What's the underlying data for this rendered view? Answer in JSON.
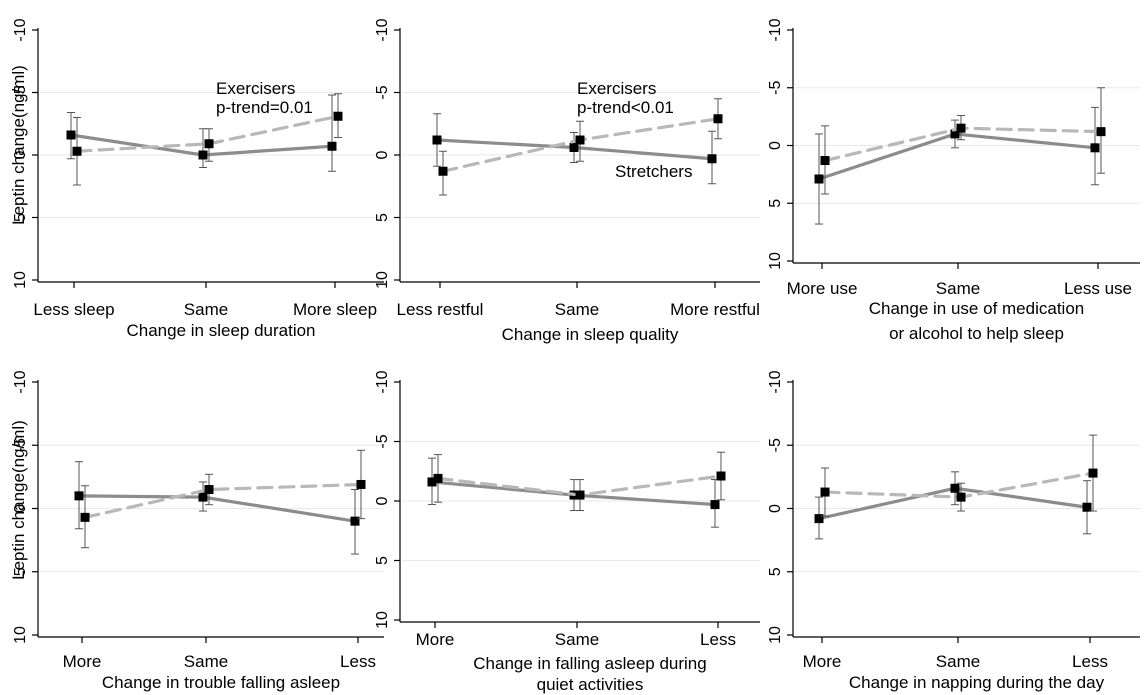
{
  "figure": {
    "ylabel": "Leptin change(ng/ml)",
    "colors": {
      "stretchers": "#8c8c8c",
      "exercisers": "#b8b8b8",
      "grid": "#e8e8e8",
      "marker": "#000000",
      "axis": "#000000"
    }
  },
  "chart_data": [
    {
      "type": "line",
      "categories": [
        "Less sleep",
        "Same",
        "More sleep"
      ],
      "xlabel": [
        "Change in sleep duration"
      ],
      "ylabel": "Leptin change(ng/ml)",
      "ylim": [
        10,
        -10
      ],
      "yticks": [
        -10,
        -5,
        0,
        5,
        10
      ],
      "ytick_labels": [
        "-10",
        "-5",
        "0",
        "5",
        "10"
      ],
      "grid": true,
      "series": [
        {
          "name": "Stretchers",
          "style": "solid",
          "values": [
            -1.6,
            0,
            -0.7
          ],
          "ci_low": [
            -3.4,
            -2.1,
            -4.8
          ],
          "ci_high": [
            0.3,
            1.0,
            1.3
          ]
        },
        {
          "name": "Exercisers",
          "style": "dashed",
          "values": [
            -0.3,
            -0.9,
            -3.1
          ],
          "ci_low": [
            -3.0,
            -2.1,
            -4.9
          ],
          "ci_high": [
            2.4,
            0.5,
            -1.4
          ]
        }
      ],
      "annotations": [
        "Exercisers",
        "p-trend=0.01"
      ]
    },
    {
      "type": "line",
      "categories": [
        "Less restful",
        "Same",
        "More restful"
      ],
      "xlabel": [
        "Change in sleep quality"
      ],
      "ylabel": "",
      "ylim": [
        10,
        -10
      ],
      "yticks": [
        -10,
        -5,
        0,
        5,
        10
      ],
      "ytick_labels": [
        "-10",
        "-5",
        "0",
        "5",
        "10"
      ],
      "grid": true,
      "series": [
        {
          "name": "Stretchers",
          "style": "solid",
          "values": [
            -1.2,
            -0.6,
            0.3
          ],
          "ci_low": [
            -3.3,
            -1.8,
            -1.9
          ],
          "ci_high": [
            0.9,
            0.6,
            2.3
          ]
        },
        {
          "name": "Exercisers",
          "style": "dashed",
          "values": [
            1.3,
            -1.2,
            -2.9
          ],
          "ci_low": [
            -0.3,
            -2.7,
            -4.5
          ],
          "ci_high": [
            3.2,
            0.5,
            -1.3
          ]
        }
      ],
      "annotations": [
        "Exercisers",
        "p-trend<0.01",
        "Stretchers"
      ]
    },
    {
      "type": "line",
      "categories": [
        "More use",
        "Same",
        "Less use"
      ],
      "xlabel": [
        "Change in use of medication",
        "or alcohol to help sleep"
      ],
      "ylabel": "",
      "ylim": [
        10,
        -10
      ],
      "yticks": [
        -10,
        -5,
        0,
        5,
        10
      ],
      "ytick_labels": [
        "-10",
        "-5",
        "0",
        "5",
        "10"
      ],
      "grid": true,
      "series": [
        {
          "name": "Stretchers",
          "style": "solid",
          "values": [
            2.9,
            -1.0,
            0.2
          ],
          "ci_low": [
            -1.0,
            -2.2,
            -3.3
          ],
          "ci_high": [
            6.8,
            0.2,
            3.4
          ]
        },
        {
          "name": "Exercisers",
          "style": "dashed",
          "values": [
            1.3,
            -1.5,
            -1.2
          ],
          "ci_low": [
            -1.7,
            -2.6,
            -5.0
          ],
          "ci_high": [
            4.2,
            -0.5,
            2.4
          ]
        }
      ],
      "annotations": []
    },
    {
      "type": "line",
      "categories": [
        "More",
        "Same",
        "Less"
      ],
      "xlabel": [
        "Change in trouble falling asleep"
      ],
      "ylabel": "Leptin change(ng/ml)",
      "ylim": [
        10,
        -10
      ],
      "yticks": [
        -10,
        -5,
        0,
        5,
        10
      ],
      "ytick_labels": [
        "-10",
        "-5",
        "0",
        "5",
        "10"
      ],
      "grid": true,
      "series": [
        {
          "name": "Stretchers",
          "style": "solid",
          "values": [
            -1.0,
            -0.9,
            1.0
          ],
          "ci_low": [
            -3.7,
            -2.1,
            -1.5
          ],
          "ci_high": [
            1.6,
            0.2,
            3.6
          ]
        },
        {
          "name": "Exercisers",
          "style": "dashed",
          "values": [
            0.7,
            -1.5,
            -1.9
          ],
          "ci_low": [
            -1.8,
            -2.7,
            -4.6
          ],
          "ci_high": [
            3.1,
            -0.3,
            0.8
          ]
        }
      ],
      "annotations": []
    },
    {
      "type": "line",
      "categories": [
        "More",
        "Same",
        "Less"
      ],
      "xlabel": [
        "Change in falling asleep during",
        "quiet activities"
      ],
      "ylabel": "",
      "ylim": [
        10,
        -10
      ],
      "yticks": [
        -10,
        -5,
        0,
        5,
        10
      ],
      "ytick_labels": [
        "-10",
        "-5",
        "0",
        "5",
        "10"
      ],
      "grid": true,
      "series": [
        {
          "name": "Stretchers",
          "style": "solid",
          "values": [
            -1.6,
            -0.5,
            0.3
          ],
          "ci_low": [
            -3.6,
            -1.8,
            -1.8
          ],
          "ci_high": [
            0.3,
            0.8,
            2.2
          ]
        },
        {
          "name": "Exercisers",
          "style": "dashed",
          "values": [
            -1.9,
            -0.5,
            -2.1
          ],
          "ci_low": [
            -3.9,
            -1.8,
            -4.1
          ],
          "ci_high": [
            0.1,
            0.8,
            -0.1
          ]
        }
      ],
      "annotations": []
    },
    {
      "type": "line",
      "categories": [
        "More",
        "Same",
        "Less"
      ],
      "xlabel": [
        "Change in napping during the day"
      ],
      "ylabel": "",
      "ylim": [
        10,
        -10
      ],
      "yticks": [
        -10,
        -5,
        0,
        5,
        10
      ],
      "ytick_labels": [
        "-10",
        "-5",
        "0",
        "5",
        "10"
      ],
      "grid": true,
      "series": [
        {
          "name": "Stretchers",
          "style": "solid",
          "values": [
            0.8,
            -1.6,
            -0.1
          ],
          "ci_low": [
            -0.9,
            -2.9,
            -2.2
          ],
          "ci_high": [
            2.4,
            -0.3,
            2.0
          ]
        },
        {
          "name": "Exercisers",
          "style": "dashed",
          "values": [
            -1.3,
            -0.9,
            -2.8
          ],
          "ci_low": [
            -3.2,
            -2.0,
            -5.8
          ],
          "ci_high": [
            0.6,
            0.2,
            0.2
          ]
        }
      ],
      "annotations": []
    }
  ]
}
